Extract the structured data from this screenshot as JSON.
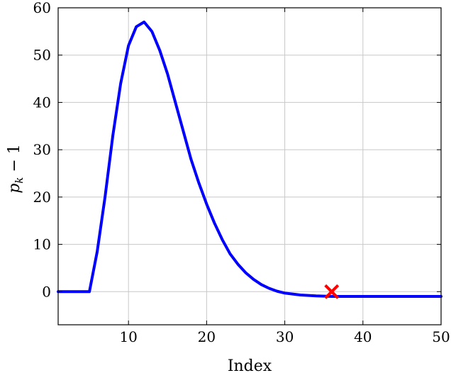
{
  "chart_data": {
    "type": "line",
    "xlabel": "Index",
    "ylabel_var": "p",
    "ylabel_sub": "k",
    "ylabel_rest": " − 1",
    "xlim": [
      1,
      50
    ],
    "ylim": [
      -7,
      60
    ],
    "x_ticks": [
      10,
      20,
      30,
      40,
      50
    ],
    "x_tick_labels": [
      "10",
      "20",
      "30",
      "40",
      "50"
    ],
    "y_ticks": [
      0,
      10,
      20,
      30,
      40,
      50,
      60
    ],
    "y_tick_labels": [
      "0",
      "10",
      "20",
      "30",
      "40",
      "50",
      "60"
    ],
    "grid": true,
    "series": [
      {
        "color": "#0000ff",
        "x": [
          1,
          2,
          3,
          4,
          5,
          6,
          7,
          8,
          9,
          10,
          11,
          12,
          13,
          14,
          15,
          16,
          17,
          18,
          19,
          20,
          21,
          22,
          23,
          24,
          25,
          26,
          27,
          28,
          29,
          30,
          31,
          32,
          33,
          34,
          35,
          36,
          37,
          38,
          39,
          40,
          41,
          42,
          43,
          44,
          45,
          46,
          47,
          48,
          49,
          50
        ],
        "y": [
          0,
          0,
          0,
          0,
          0,
          8.5,
          20,
          33,
          44,
          52,
          56,
          57,
          55,
          51,
          46,
          40,
          34,
          28,
          23,
          18.5,
          14.5,
          11,
          8,
          5.8,
          4,
          2.6,
          1.5,
          0.7,
          0.1,
          -0.3,
          -0.5,
          -0.7,
          -0.8,
          -0.9,
          -0.95,
          -1,
          -1,
          -1,
          -1,
          -1,
          -1,
          -1,
          -1,
          -1,
          -1,
          -1,
          -1,
          -1,
          -1,
          -1
        ]
      }
    ],
    "marker": {
      "x": 36,
      "y": 0,
      "symbol": "x",
      "color": "#ff0000"
    }
  }
}
